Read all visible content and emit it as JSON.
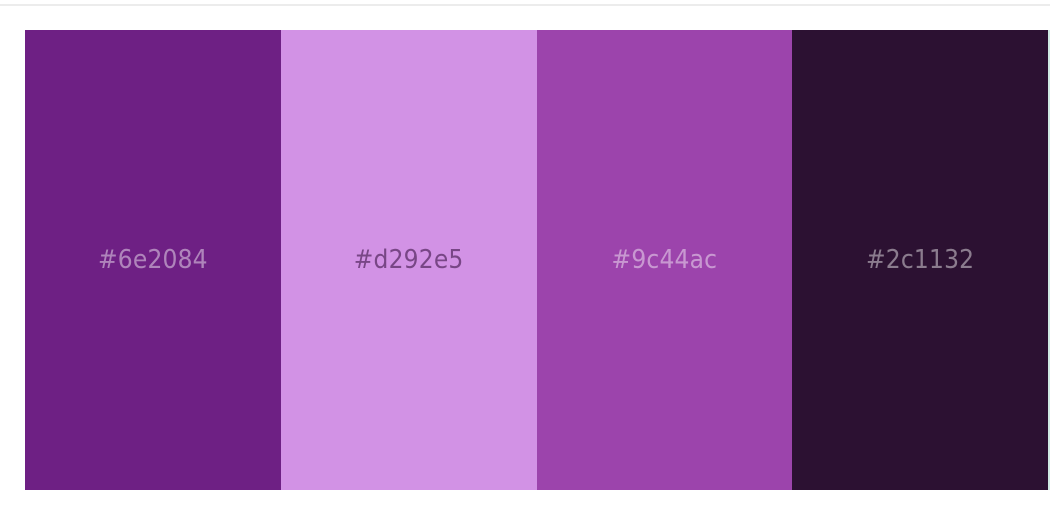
{
  "palette": {
    "swatches": [
      {
        "hex": "#6e2084",
        "label": "#6e2084",
        "light": false
      },
      {
        "hex": "#d292e5",
        "label": "#d292e5",
        "light": true
      },
      {
        "hex": "#9c44ac",
        "label": "#9c44ac",
        "light": false
      },
      {
        "hex": "#2c1132",
        "label": "#2c1132",
        "light": false
      }
    ]
  }
}
